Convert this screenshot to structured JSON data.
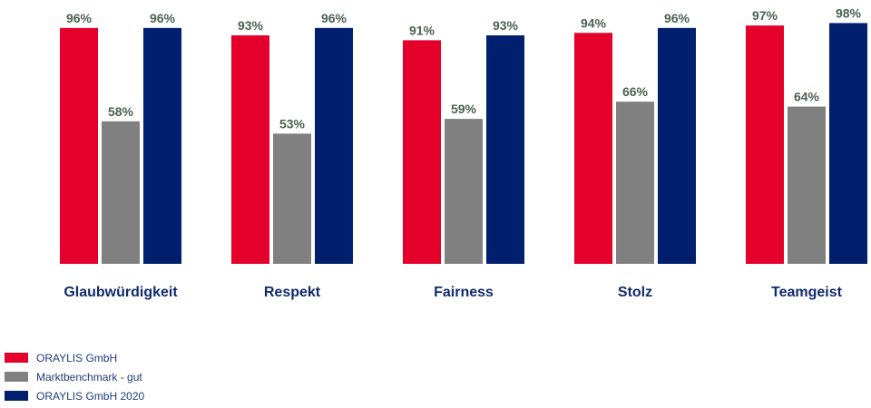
{
  "chart_data": {
    "type": "bar",
    "categories": [
      "Glaubwürdigkeit",
      "Respekt",
      "Fairness",
      "Stolz",
      "Teamgeist"
    ],
    "series": [
      {
        "name": "ORAYLIS GmbH",
        "color": "#e4002b",
        "values": [
          96,
          93,
          91,
          94,
          97
        ]
      },
      {
        "name": "Marktbenchmark - gut",
        "color": "#808080",
        "values": [
          58,
          53,
          59,
          66,
          64
        ]
      },
      {
        "name": "ORAYLIS GmbH 2020",
        "color": "#001f6e",
        "values": [
          96,
          96,
          93,
          96,
          98
        ]
      }
    ],
    "value_suffix": "%",
    "ylim": [
      0,
      100
    ],
    "legend_position": "bottom-left",
    "grid": false
  },
  "colors": {
    "value_label": "#4b6150",
    "category_label": "#0e2b6b",
    "legend_text": "#1f3a78"
  }
}
